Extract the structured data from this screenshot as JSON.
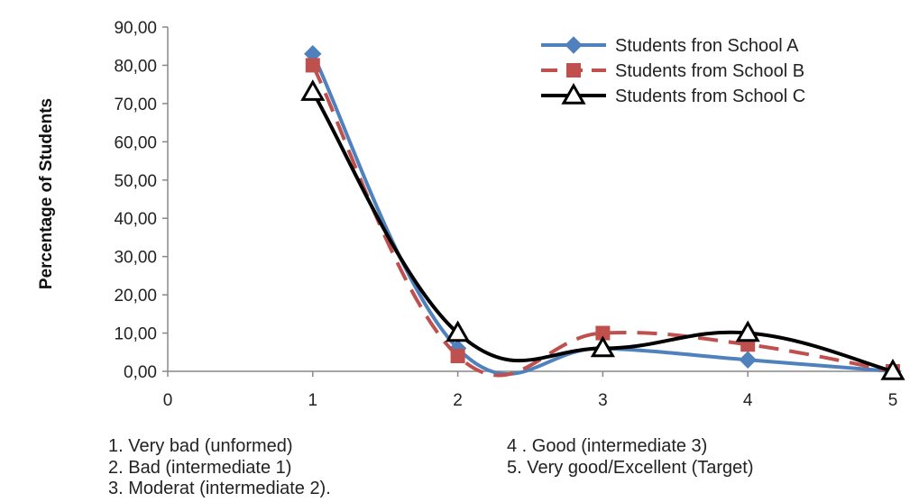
{
  "chart_data": {
    "type": "line",
    "title": "",
    "xlabel": "",
    "ylabel": "Percentage of Students",
    "x": [
      1,
      2,
      3,
      4,
      5
    ],
    "xlim": [
      0,
      5
    ],
    "ylim": [
      0,
      90
    ],
    "x_ticks": [
      "0",
      "1",
      "2",
      "3",
      "4",
      "5"
    ],
    "y_ticks": [
      "0,00",
      "10,00",
      "20,00",
      "30,00",
      "40,00",
      "50,00",
      "60,00",
      "70,00",
      "80,00",
      "90,00"
    ],
    "grid": false,
    "legend_position": "top-right",
    "series": [
      {
        "name": "Students fron School A",
        "values": [
          83,
          6,
          6,
          3,
          0
        ],
        "color": "#4f81bd",
        "marker": "diamond",
        "line": "solid"
      },
      {
        "name": "Students from School B",
        "values": [
          80,
          4,
          10,
          7,
          0
        ],
        "color": "#c0504d",
        "marker": "square",
        "line": "dashed"
      },
      {
        "name": "Students from School C",
        "values": [
          73,
          10,
          6,
          10,
          0
        ],
        "color": "#000000",
        "marker": "triangle",
        "line": "solid"
      }
    ]
  },
  "notes": [
    "1. Very bad (unformed)",
    "2. Bad (intermediate 1)",
    "3. Moderat (intermediate 2).",
    "4 .  Good (intermediate 3)",
    "5.  Very good/Excellent (Target)"
  ]
}
